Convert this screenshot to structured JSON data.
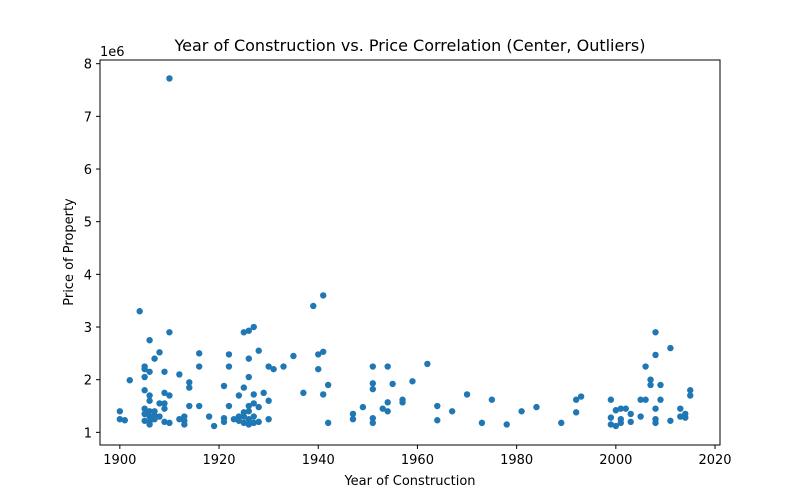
{
  "chart_data": {
    "type": "scatter",
    "title": "Year of Construction vs. Price Correlation (Center, Outliers)",
    "xlabel": "Year of Construction",
    "ylabel": "Price of Property",
    "y_offset_label": "1e6",
    "xlim": [
      1896,
      2021
    ],
    "ylim": [
      0.76,
      8.07
    ],
    "y_scale_factor": 1000000,
    "xticks": [
      1900,
      1920,
      1940,
      1960,
      1980,
      2000,
      2020
    ],
    "yticks": [
      1,
      2,
      3,
      4,
      5,
      6,
      7,
      8
    ],
    "grid": false,
    "legend": "none",
    "marker_color": "#1f77b4",
    "points": [
      {
        "x": 1900,
        "y": 1.25
      },
      {
        "x": 1900,
        "y": 1.4
      },
      {
        "x": 1901,
        "y": 1.23
      },
      {
        "x": 1902,
        "y": 1.99
      },
      {
        "x": 1904,
        "y": 3.3
      },
      {
        "x": 1905,
        "y": 2.2
      },
      {
        "x": 1905,
        "y": 2.25
      },
      {
        "x": 1905,
        "y": 2.05
      },
      {
        "x": 1905,
        "y": 1.8
      },
      {
        "x": 1905,
        "y": 1.45
      },
      {
        "x": 1905,
        "y": 1.35
      },
      {
        "x": 1905,
        "y": 1.22
      },
      {
        "x": 1906,
        "y": 2.75
      },
      {
        "x": 1906,
        "y": 2.15
      },
      {
        "x": 1906,
        "y": 1.7
      },
      {
        "x": 1906,
        "y": 1.6
      },
      {
        "x": 1906,
        "y": 1.4
      },
      {
        "x": 1906,
        "y": 1.3
      },
      {
        "x": 1906,
        "y": 1.2
      },
      {
        "x": 1906,
        "y": 1.15
      },
      {
        "x": 1907,
        "y": 2.4
      },
      {
        "x": 1907,
        "y": 1.4
      },
      {
        "x": 1907,
        "y": 1.32
      },
      {
        "x": 1907,
        "y": 1.25
      },
      {
        "x": 1908,
        "y": 2.52
      },
      {
        "x": 1908,
        "y": 1.55
      },
      {
        "x": 1908,
        "y": 1.3
      },
      {
        "x": 1909,
        "y": 2.15
      },
      {
        "x": 1909,
        "y": 1.75
      },
      {
        "x": 1909,
        "y": 1.55
      },
      {
        "x": 1909,
        "y": 1.45
      },
      {
        "x": 1909,
        "y": 1.2
      },
      {
        "x": 1910,
        "y": 7.72
      },
      {
        "x": 1910,
        "y": 2.9
      },
      {
        "x": 1910,
        "y": 1.7
      },
      {
        "x": 1910,
        "y": 1.18
      },
      {
        "x": 1912,
        "y": 2.1
      },
      {
        "x": 1912,
        "y": 1.25
      },
      {
        "x": 1913,
        "y": 1.3
      },
      {
        "x": 1913,
        "y": 1.22
      },
      {
        "x": 1913,
        "y": 1.15
      },
      {
        "x": 1914,
        "y": 1.95
      },
      {
        "x": 1914,
        "y": 1.85
      },
      {
        "x": 1914,
        "y": 1.5
      },
      {
        "x": 1916,
        "y": 2.5
      },
      {
        "x": 1916,
        "y": 2.25
      },
      {
        "x": 1916,
        "y": 1.5
      },
      {
        "x": 1918,
        "y": 1.3
      },
      {
        "x": 1919,
        "y": 1.12
      },
      {
        "x": 1921,
        "y": 1.88
      },
      {
        "x": 1921,
        "y": 1.27
      },
      {
        "x": 1921,
        "y": 1.2
      },
      {
        "x": 1922,
        "y": 2.48
      },
      {
        "x": 1922,
        "y": 2.25
      },
      {
        "x": 1922,
        "y": 1.5
      },
      {
        "x": 1923,
        "y": 1.25
      },
      {
        "x": 1924,
        "y": 1.7
      },
      {
        "x": 1924,
        "y": 1.3
      },
      {
        "x": 1924,
        "y": 1.22
      },
      {
        "x": 1925,
        "y": 2.9
      },
      {
        "x": 1925,
        "y": 1.85
      },
      {
        "x": 1925,
        "y": 1.38
      },
      {
        "x": 1925,
        "y": 1.3
      },
      {
        "x": 1925,
        "y": 1.18
      },
      {
        "x": 1926,
        "y": 2.93
      },
      {
        "x": 1926,
        "y": 2.4
      },
      {
        "x": 1926,
        "y": 2.05
      },
      {
        "x": 1926,
        "y": 1.5
      },
      {
        "x": 1926,
        "y": 1.4
      },
      {
        "x": 1926,
        "y": 1.25
      },
      {
        "x": 1926,
        "y": 1.15
      },
      {
        "x": 1927,
        "y": 3.0
      },
      {
        "x": 1927,
        "y": 1.72
      },
      {
        "x": 1927,
        "y": 1.55
      },
      {
        "x": 1927,
        "y": 1.3
      },
      {
        "x": 1927,
        "y": 1.18
      },
      {
        "x": 1928,
        "y": 2.55
      },
      {
        "x": 1928,
        "y": 1.48
      },
      {
        "x": 1928,
        "y": 1.2
      },
      {
        "x": 1929,
        "y": 1.75
      },
      {
        "x": 1930,
        "y": 2.25
      },
      {
        "x": 1930,
        "y": 1.6
      },
      {
        "x": 1930,
        "y": 1.25
      },
      {
        "x": 1931,
        "y": 2.2
      },
      {
        "x": 1933,
        "y": 2.25
      },
      {
        "x": 1935,
        "y": 2.45
      },
      {
        "x": 1937,
        "y": 1.75
      },
      {
        "x": 1939,
        "y": 3.4
      },
      {
        "x": 1940,
        "y": 2.48
      },
      {
        "x": 1940,
        "y": 2.2
      },
      {
        "x": 1941,
        "y": 3.6
      },
      {
        "x": 1941,
        "y": 2.53
      },
      {
        "x": 1941,
        "y": 1.72
      },
      {
        "x": 1942,
        "y": 1.9
      },
      {
        "x": 1942,
        "y": 1.18
      },
      {
        "x": 1947,
        "y": 1.35
      },
      {
        "x": 1947,
        "y": 1.25
      },
      {
        "x": 1949,
        "y": 1.48
      },
      {
        "x": 1951,
        "y": 2.25
      },
      {
        "x": 1951,
        "y": 1.93
      },
      {
        "x": 1951,
        "y": 1.82
      },
      {
        "x": 1951,
        "y": 1.27
      },
      {
        "x": 1951,
        "y": 1.18
      },
      {
        "x": 1953,
        "y": 1.45
      },
      {
        "x": 1954,
        "y": 2.25
      },
      {
        "x": 1954,
        "y": 1.57
      },
      {
        "x": 1954,
        "y": 1.4
      },
      {
        "x": 1955,
        "y": 1.92
      },
      {
        "x": 1957,
        "y": 1.62
      },
      {
        "x": 1957,
        "y": 1.57
      },
      {
        "x": 1959,
        "y": 1.97
      },
      {
        "x": 1962,
        "y": 2.3
      },
      {
        "x": 1964,
        "y": 1.5
      },
      {
        "x": 1964,
        "y": 1.23
      },
      {
        "x": 1967,
        "y": 1.4
      },
      {
        "x": 1970,
        "y": 1.72
      },
      {
        "x": 1973,
        "y": 1.18
      },
      {
        "x": 1975,
        "y": 1.62
      },
      {
        "x": 1978,
        "y": 1.15
      },
      {
        "x": 1981,
        "y": 1.4
      },
      {
        "x": 1984,
        "y": 1.48
      },
      {
        "x": 1989,
        "y": 1.18
      },
      {
        "x": 1992,
        "y": 1.62
      },
      {
        "x": 1992,
        "y": 1.38
      },
      {
        "x": 1993,
        "y": 1.68
      },
      {
        "x": 1999,
        "y": 1.62
      },
      {
        "x": 1999,
        "y": 1.28
      },
      {
        "x": 1999,
        "y": 1.15
      },
      {
        "x": 2000,
        "y": 1.42
      },
      {
        "x": 2000,
        "y": 1.12
      },
      {
        "x": 2001,
        "y": 1.45
      },
      {
        "x": 2001,
        "y": 1.25
      },
      {
        "x": 2001,
        "y": 1.18
      },
      {
        "x": 2002,
        "y": 1.45
      },
      {
        "x": 2003,
        "y": 1.35
      },
      {
        "x": 2003,
        "y": 1.2
      },
      {
        "x": 2005,
        "y": 1.62
      },
      {
        "x": 2005,
        "y": 1.3
      },
      {
        "x": 2006,
        "y": 2.25
      },
      {
        "x": 2006,
        "y": 1.62
      },
      {
        "x": 2007,
        "y": 2.0
      },
      {
        "x": 2007,
        "y": 1.9
      },
      {
        "x": 2008,
        "y": 2.9
      },
      {
        "x": 2008,
        "y": 2.47
      },
      {
        "x": 2008,
        "y": 1.45
      },
      {
        "x": 2008,
        "y": 1.25
      },
      {
        "x": 2008,
        "y": 1.18
      },
      {
        "x": 2009,
        "y": 1.9
      },
      {
        "x": 2009,
        "y": 1.62
      },
      {
        "x": 2011,
        "y": 2.6
      },
      {
        "x": 2011,
        "y": 1.22
      },
      {
        "x": 2013,
        "y": 1.45
      },
      {
        "x": 2013,
        "y": 1.3
      },
      {
        "x": 2014,
        "y": 1.35
      },
      {
        "x": 2014,
        "y": 1.28
      },
      {
        "x": 2015,
        "y": 1.8
      },
      {
        "x": 2015,
        "y": 1.7
      }
    ]
  }
}
